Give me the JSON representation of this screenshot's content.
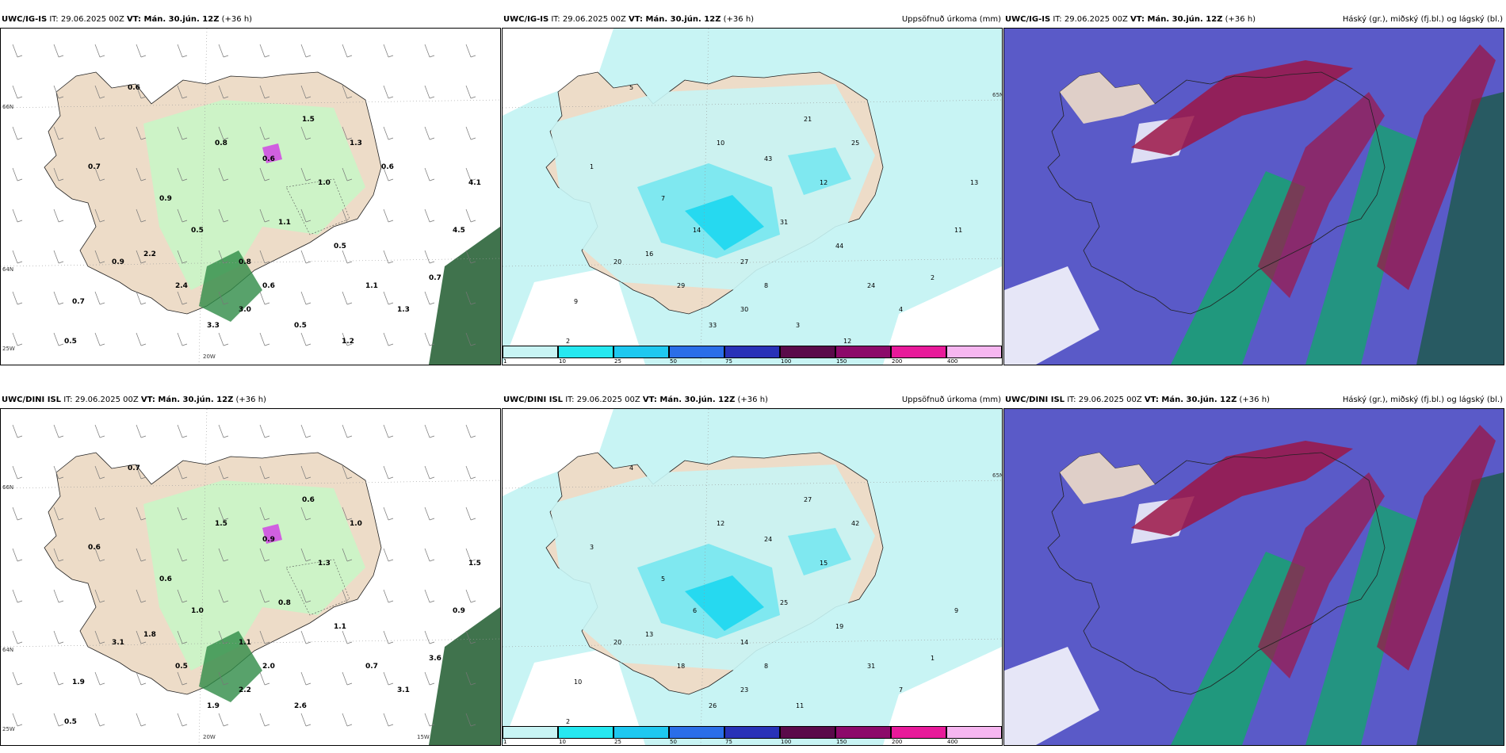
{
  "colors": {
    "land": "#eddcc8",
    "precip_light": "#c8f4f4",
    "precip_mid": "#7fe8f0",
    "precip_strong": "#26d9f0",
    "cloud_high": "#9c1646",
    "cloud_mid": "#12a86a",
    "cloud_low": "#5a5ac8",
    "wind_green_light": "#c9f5c6",
    "wind_green_dark": "#1e5a2e"
  },
  "panels": [
    {
      "id": "top-left",
      "model": "UWC/IG-IS",
      "it": "IT: 29.06.2025 00Z",
      "vt": "VT: Mán. 30.jún. 12Z",
      "lead": "(+36 h)",
      "legend": "",
      "values": [
        "0.5",
        "0.7",
        "0.6",
        "0.9",
        "0.5",
        "0.8",
        "0.8",
        "0.6",
        "1.1",
        "1.5",
        "1.0",
        "0.5",
        "1.3",
        "1.1",
        "2.4",
        "3.3",
        "3.0",
        "0.9",
        "2.2",
        "0.7",
        "0.6",
        "0.5",
        "1.3",
        "0.7",
        "4.5",
        "4.1",
        "1.2",
        "0.6"
      ],
      "ticks": [
        "66N",
        "64N",
        "25W",
        "20W"
      ]
    },
    {
      "id": "top-mid",
      "model": "UWC/IG-IS",
      "it": "IT: 29.06.2025 00Z",
      "vt": "VT: Mán. 30.jún. 12Z",
      "lead": "(+36 h)",
      "legend": "Uppsöfnuð úrkoma (mm)",
      "values": [
        "2",
        "1",
        "5",
        "7",
        "14",
        "10",
        "27",
        "43",
        "31",
        "21",
        "12",
        "44",
        "25",
        "24",
        "29",
        "33",
        "30",
        "20",
        "16",
        "9",
        "8",
        "3",
        "4",
        "2",
        "11",
        "13",
        "12"
      ],
      "cbar": [
        "1",
        "10",
        "25",
        "50",
        "75",
        "100",
        "150",
        "200",
        "400"
      ],
      "ticks": [
        "65N"
      ]
    },
    {
      "id": "top-right",
      "model": "UWC/IG-IS",
      "it": "IT: 29.06.2025 00Z",
      "vt": "VT: Mán. 30.jún. 12Z",
      "lead": "(+36 h)",
      "legend": "Háský (gr.), miðský (fj.bl.) og lágský (bl.)",
      "values": [],
      "ticks": []
    },
    {
      "id": "bottom-left",
      "model": "UWC/DINI ISL",
      "it": "IT: 29.06.2025 00Z",
      "vt": "VT: Mán. 30.jún. 12Z",
      "lead": "(+36 h)",
      "legend": "",
      "values": [
        "0.5",
        "0.6",
        "0.7",
        "0.6",
        "1.0",
        "1.5",
        "1.1",
        "0.9",
        "0.8",
        "0.6",
        "1.3",
        "1.1",
        "1.0",
        "0.7",
        "0.5",
        "1.9",
        "2.2",
        "3.1",
        "1.8",
        "1.9",
        "2.0",
        "2.6",
        "3.1",
        "3.6",
        "0.9",
        "1.5"
      ],
      "ticks": [
        "66N",
        "64N",
        "25W",
        "20W",
        "15W"
      ]
    },
    {
      "id": "bottom-mid",
      "model": "UWC/DINI ISL",
      "it": "IT: 29.06.2025 00Z",
      "vt": "VT: Mán. 30.jún. 12Z",
      "lead": "(+36 h)",
      "legend": "Uppsöfnuð úrkoma (mm)",
      "values": [
        "2",
        "3",
        "4",
        "5",
        "6",
        "12",
        "14",
        "24",
        "25",
        "27",
        "15",
        "19",
        "42",
        "31",
        "18",
        "26",
        "23",
        "20",
        "13",
        "10",
        "8",
        "11",
        "7",
        "1",
        "9"
      ],
      "cbar": [
        "1",
        "10",
        "25",
        "50",
        "75",
        "100",
        "150",
        "200",
        "400"
      ],
      "ticks": [
        "65N"
      ]
    },
    {
      "id": "bottom-right",
      "model": "UWC/DINI ISL",
      "it": "IT: 29.06.2025 00Z",
      "vt": "VT: Mán. 30.jún. 12Z",
      "lead": "(+36 h)",
      "legend": "Háský (gr.), miðský (fj.bl.) og lágský (bl.)",
      "values": [],
      "ticks": []
    }
  ]
}
